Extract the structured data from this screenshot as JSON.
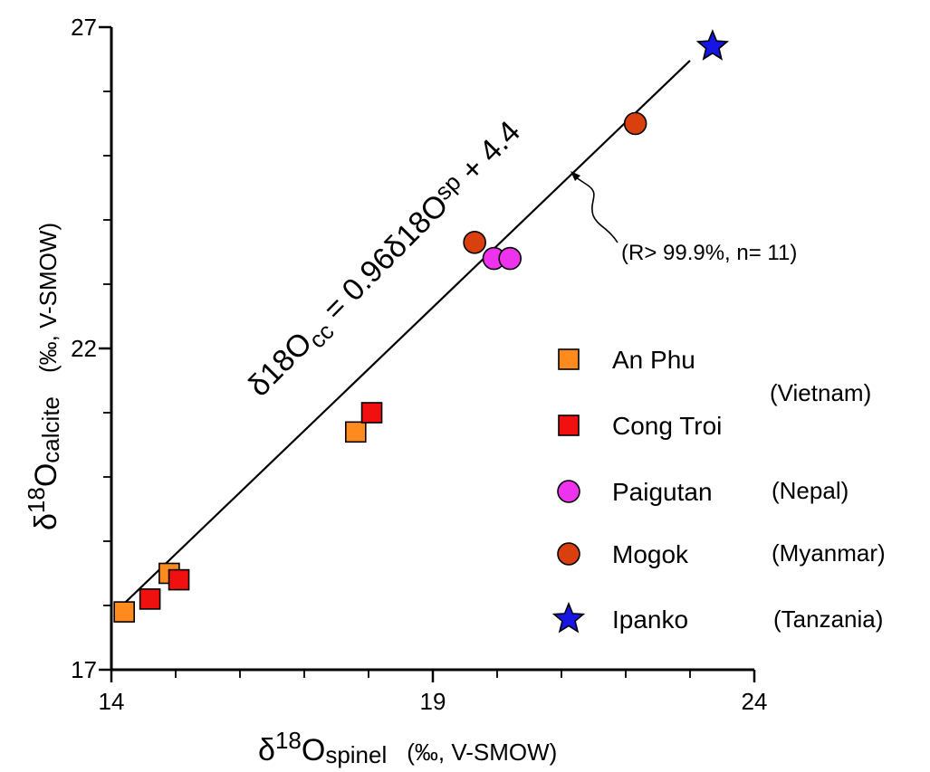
{
  "chart_data": {
    "type": "scatter",
    "x_axis": {
      "label_symbol": "δ",
      "label_superscript": "18",
      "label_main": "O",
      "label_subscript": "spinel",
      "label_unit": "(‰, V-SMOW)",
      "range": [
        14,
        24
      ],
      "tick_labels": [
        "14",
        "19",
        "24"
      ]
    },
    "y_axis": {
      "label_symbol": "δ",
      "label_superscript": "18",
      "label_main": "O",
      "label_subscript": "calcite",
      "label_unit": "(‰, V-SMOW)",
      "range": [
        17,
        27
      ],
      "tick_labels": [
        "17",
        "22",
        "27"
      ]
    },
    "series": [
      {
        "name": "An Phu",
        "region": "(Vietnam)",
        "marker": "square",
        "color": "#FF8A1E",
        "points": [
          [
            14.2,
            17.9
          ],
          [
            14.9,
            18.5
          ],
          [
            17.8,
            20.7
          ]
        ]
      },
      {
        "name": "Cong Troi",
        "region": "",
        "marker": "square",
        "color": "#F01010",
        "points": [
          [
            14.6,
            18.1
          ],
          [
            15.05,
            18.4
          ],
          [
            18.05,
            21.0
          ]
        ]
      },
      {
        "name": "Paigutan",
        "region": "(Nepal)",
        "marker": "circle",
        "color": "#EE33EE",
        "points": [
          [
            19.95,
            23.4
          ],
          [
            20.2,
            23.4
          ]
        ]
      },
      {
        "name": "Mogok",
        "region": "(Myanmar)",
        "marker": "circle",
        "color": "#D9400E",
        "points": [
          [
            19.65,
            23.65
          ],
          [
            22.15,
            25.5
          ]
        ]
      },
      {
        "name": "Ipanko",
        "region": "(Tanzania)",
        "marker": "star",
        "color": "#1515E6",
        "points": [
          [
            23.35,
            26.7
          ]
        ]
      }
    ],
    "regression_line": {
      "slope": 0.96,
      "intercept": 4.4,
      "x_range": [
        14.05,
        23.0
      ]
    },
    "annotations": {
      "equation_prefix": "δ18O",
      "equation_sub_cc": "cc",
      "equation_middle": " = 0.96δ18O",
      "equation_sub_sp": "sp",
      "equation_suffix": " + 4.4",
      "stats": "(R> 99.9%, n= 11)"
    },
    "grid": false,
    "legend_position": "right"
  }
}
